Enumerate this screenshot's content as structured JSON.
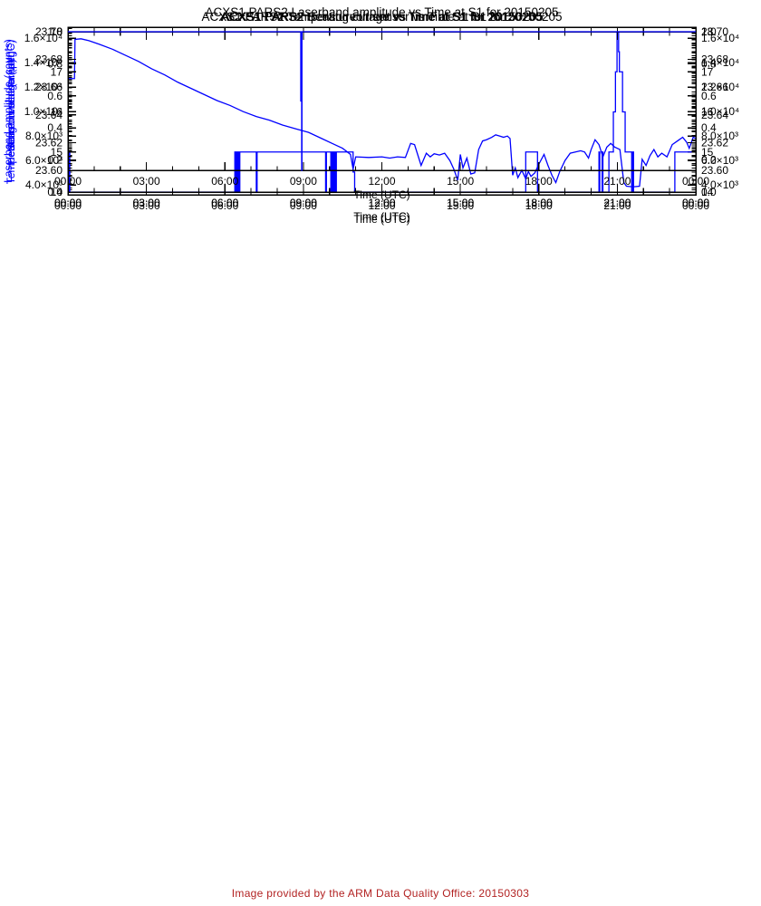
{
  "colors": {
    "line": "#0000ff",
    "axis": "#000000",
    "tick_label": "#000000",
    "y_axis_label": "#0000ff",
    "caption": "#b22222",
    "background": "#ffffff"
  },
  "footer": {
    "caption": "Image provided by the ARM Data Quality Office: 20150303"
  },
  "time_axis": {
    "label": "Time (UTC)",
    "lim": [
      0,
      24
    ],
    "major_ticks": [
      {
        "h": 0,
        "label": "00:00"
      },
      {
        "h": 3,
        "label": "03:00"
      },
      {
        "h": 6,
        "label": "06:00"
      },
      {
        "h": 9,
        "label": "09:00"
      },
      {
        "h": 12,
        "label": "12:00"
      },
      {
        "h": 15,
        "label": "15:00"
      },
      {
        "h": 18,
        "label": "18:00"
      },
      {
        "h": 21,
        "label": "21:00"
      },
      {
        "h": 24,
        "label": "00:00"
      }
    ],
    "minor_step_hours": 1
  },
  "chart_data": [
    {
      "id": "laserband-amplitude",
      "type": "line",
      "title": "ACXS1 PARS2 Laserband amplitude vs Time at S1 for 20150205",
      "ylabel": "Laserband amplitude (counts)",
      "xlabel": "Time (UTC)",
      "ylim": [
        3200,
        16900
      ],
      "yticks": [
        {
          "v": 4000,
          "label": "4.0×10³"
        },
        {
          "v": 6000,
          "label": "6.0×10³"
        },
        {
          "v": 8000,
          "label": "8.0×10³"
        },
        {
          "v": 10000,
          "label": "1.0×10⁴"
        },
        {
          "v": 12000,
          "label": "1.2×10⁴"
        },
        {
          "v": 14000,
          "label": "1.4×10⁴"
        },
        {
          "v": 16000,
          "label": "1.6×10⁴"
        }
      ],
      "y_minor_div": 5,
      "series": [
        [
          0,
          12700
        ],
        [
          0.25,
          12700
        ],
        [
          0.27,
          15900
        ],
        [
          0.5,
          15950
        ],
        [
          0.8,
          15800
        ],
        [
          1.2,
          15500
        ],
        [
          1.7,
          15100
        ],
        [
          2.2,
          14600
        ],
        [
          2.7,
          14100
        ],
        [
          3.2,
          13500
        ],
        [
          3.7,
          13000
        ],
        [
          4.2,
          12400
        ],
        [
          4.7,
          11900
        ],
        [
          5.2,
          11400
        ],
        [
          5.7,
          10900
        ],
        [
          6.2,
          10500
        ],
        [
          6.7,
          10000
        ],
        [
          7.2,
          9600
        ],
        [
          7.7,
          9300
        ],
        [
          8.2,
          8900
        ],
        [
          8.7,
          8600
        ],
        [
          9.2,
          8300
        ],
        [
          9.7,
          7800
        ],
        [
          10.1,
          7400
        ],
        [
          10.5,
          7000
        ],
        [
          10.8,
          6500
        ],
        [
          10.9,
          5300
        ],
        [
          11.0,
          6300
        ],
        [
          11.5,
          6250
        ],
        [
          12.0,
          6300
        ],
        [
          12.3,
          6200
        ],
        [
          12.6,
          6300
        ],
        [
          12.9,
          6250
        ],
        [
          13.1,
          7400
        ],
        [
          13.25,
          7300
        ],
        [
          13.5,
          5600
        ],
        [
          13.7,
          6600
        ],
        [
          13.85,
          6300
        ],
        [
          14.0,
          6550
        ],
        [
          14.2,
          6450
        ],
        [
          14.4,
          6600
        ],
        [
          14.6,
          6000
        ],
        [
          14.75,
          5300
        ],
        [
          14.9,
          4400
        ],
        [
          15.0,
          6500
        ],
        [
          15.1,
          5400
        ],
        [
          15.25,
          6200
        ],
        [
          15.4,
          4900
        ],
        [
          15.55,
          5000
        ],
        [
          15.7,
          6900
        ],
        [
          15.85,
          7600
        ],
        [
          16.0,
          7700
        ],
        [
          16.2,
          7900
        ],
        [
          16.35,
          8100
        ],
        [
          16.5,
          8000
        ],
        [
          16.65,
          7900
        ],
        [
          16.8,
          8000
        ],
        [
          16.9,
          7800
        ],
        [
          17.0,
          4800
        ],
        [
          17.1,
          5400
        ],
        [
          17.2,
          4600
        ],
        [
          17.35,
          5200
        ],
        [
          17.5,
          4500
        ],
        [
          17.6,
          5100
        ],
        [
          17.7,
          4700
        ],
        [
          17.85,
          5000
        ],
        [
          18.0,
          5700
        ],
        [
          18.2,
          6500
        ],
        [
          18.35,
          5600
        ],
        [
          18.5,
          4800
        ],
        [
          18.65,
          4200
        ],
        [
          18.8,
          5100
        ],
        [
          19.0,
          6000
        ],
        [
          19.2,
          6600
        ],
        [
          19.4,
          6700
        ],
        [
          19.6,
          6800
        ],
        [
          19.75,
          6700
        ],
        [
          19.9,
          6200
        ],
        [
          20.0,
          6900
        ],
        [
          20.15,
          7700
        ],
        [
          20.3,
          7300
        ],
        [
          20.45,
          6300
        ],
        [
          20.6,
          7100
        ],
        [
          20.75,
          7400
        ],
        [
          20.9,
          7100
        ],
        [
          21.1,
          6900
        ],
        [
          21.25,
          4200
        ],
        [
          21.35,
          3900
        ],
        [
          21.6,
          3850
        ],
        [
          21.85,
          3900
        ],
        [
          21.95,
          6100
        ],
        [
          22.1,
          5600
        ],
        [
          22.25,
          6400
        ],
        [
          22.4,
          6900
        ],
        [
          22.55,
          6300
        ],
        [
          22.7,
          6600
        ],
        [
          22.9,
          6300
        ],
        [
          23.1,
          7300
        ],
        [
          23.3,
          7600
        ],
        [
          23.5,
          7900
        ],
        [
          23.65,
          7500
        ],
        [
          23.75,
          7000
        ],
        [
          23.9,
          7900
        ],
        [
          24,
          7800
        ]
      ]
    },
    {
      "id": "sensor-temperature",
      "type": "line",
      "title": "ACXS1 PARS2 Temperature in sensor vs Time at S1 for 20150205",
      "ylabel": "Temperature in sensor (degC)",
      "xlabel": "Time (UTC)",
      "ylim": [
        14,
        18
      ],
      "yticks": [
        {
          "v": 14,
          "label": "14"
        },
        {
          "v": 15,
          "label": "15"
        },
        {
          "v": 16,
          "label": "16"
        },
        {
          "v": 17,
          "label": "17"
        },
        {
          "v": 18,
          "label": "18"
        }
      ],
      "y_minor_div": 10,
      "series": [
        [
          0,
          14
        ],
        [
          0.04,
          14
        ],
        [
          0.04,
          15
        ],
        [
          0.07,
          15
        ],
        [
          0.07,
          14
        ],
        [
          6.38,
          14
        ],
        [
          6.38,
          15
        ],
        [
          6.41,
          15
        ],
        [
          6.41,
          14
        ],
        [
          6.43,
          14
        ],
        [
          6.43,
          15
        ],
        [
          6.45,
          15
        ],
        [
          6.45,
          14
        ],
        [
          6.47,
          14
        ],
        [
          6.47,
          15
        ],
        [
          6.5,
          15
        ],
        [
          6.5,
          14
        ],
        [
          6.52,
          14
        ],
        [
          6.52,
          15
        ],
        [
          6.55,
          15
        ],
        [
          6.55,
          14
        ],
        [
          6.57,
          14
        ],
        [
          6.57,
          15
        ],
        [
          7.2,
          15
        ],
        [
          7.2,
          14
        ],
        [
          7.23,
          14
        ],
        [
          7.23,
          15
        ],
        [
          9.85,
          15
        ],
        [
          9.85,
          14
        ],
        [
          9.88,
          14
        ],
        [
          9.88,
          15
        ],
        [
          10.05,
          15
        ],
        [
          10.05,
          14
        ],
        [
          10.08,
          14
        ],
        [
          10.08,
          15
        ],
        [
          10.11,
          15
        ],
        [
          10.11,
          14
        ],
        [
          10.14,
          14
        ],
        [
          10.14,
          15
        ],
        [
          10.17,
          15
        ],
        [
          10.17,
          14
        ],
        [
          10.2,
          14
        ],
        [
          10.2,
          15
        ],
        [
          10.23,
          15
        ],
        [
          10.23,
          14
        ],
        [
          10.26,
          14
        ],
        [
          10.26,
          15
        ],
        [
          10.9,
          15
        ],
        [
          10.9,
          14.5
        ],
        [
          10.96,
          14.5
        ],
        [
          10.96,
          14
        ],
        [
          17.5,
          14
        ],
        [
          17.5,
          15
        ],
        [
          17.95,
          15
        ],
        [
          17.95,
          14
        ],
        [
          20.3,
          14
        ],
        [
          20.3,
          15
        ],
        [
          20.33,
          15
        ],
        [
          20.33,
          14
        ],
        [
          20.42,
          14
        ],
        [
          20.42,
          15
        ],
        [
          20.45,
          15
        ],
        [
          20.45,
          14
        ],
        [
          20.68,
          14
        ],
        [
          20.68,
          15
        ],
        [
          20.85,
          15
        ],
        [
          20.85,
          16
        ],
        [
          20.93,
          16
        ],
        [
          20.93,
          17
        ],
        [
          20.99,
          17
        ],
        [
          20.99,
          18
        ],
        [
          21.05,
          18
        ],
        [
          21.05,
          17.5
        ],
        [
          21.08,
          17.5
        ],
        [
          21.08,
          17
        ],
        [
          21.2,
          17
        ],
        [
          21.2,
          16
        ],
        [
          21.3,
          16
        ],
        [
          21.3,
          15
        ],
        [
          21.55,
          15
        ],
        [
          21.55,
          14
        ],
        [
          21.58,
          14
        ],
        [
          21.58,
          15
        ],
        [
          21.62,
          15
        ],
        [
          21.62,
          14
        ],
        [
          23.2,
          14
        ],
        [
          23.2,
          15
        ],
        [
          24,
          15
        ]
      ]
    },
    {
      "id": "heating-current",
      "type": "line",
      "title": "ACXS1 PARS2 Heating current vs Time at S1 for 20150205",
      "ylabel": "Heating current (amp)",
      "xlabel": "Time (UTC)",
      "ylim": [
        0,
        1
      ],
      "yticks": [
        {
          "v": 0.0,
          "label": "0.0"
        },
        {
          "v": 0.2,
          "label": "0.2"
        },
        {
          "v": 0.4,
          "label": "0.4"
        },
        {
          "v": 0.6,
          "label": "0.6"
        },
        {
          "v": 0.8,
          "label": "0.8"
        },
        {
          "v": 1.0,
          "label": "1.0"
        }
      ],
      "y_minor_div": 4,
      "series": []
    },
    {
      "id": "sensor-voltage",
      "type": "line",
      "title": "ACXS1 PARS2 Sensor voltage vs Time at S1 for 20150205",
      "ylabel": "Sensor voltage (volt)",
      "xlabel": "Time (UTC)",
      "ylim": [
        23.6,
        23.7
      ],
      "yticks": [
        {
          "v": 23.6,
          "label": "23.60"
        },
        {
          "v": 23.62,
          "label": "23.62"
        },
        {
          "v": 23.64,
          "label": "23.64"
        },
        {
          "v": 23.66,
          "label": "23.66"
        },
        {
          "v": 23.68,
          "label": "23.68"
        },
        {
          "v": 23.7,
          "label": "23.70"
        }
      ],
      "y_minor_div": 4,
      "series": [
        [
          0,
          23.7
        ],
        [
          8.9,
          23.7
        ],
        [
          8.9,
          23.65
        ],
        [
          8.935,
          23.65
        ],
        [
          8.935,
          23.6
        ],
        [
          8.945,
          23.6
        ],
        [
          8.945,
          23.7
        ],
        [
          24,
          23.7
        ]
      ]
    }
  ]
}
